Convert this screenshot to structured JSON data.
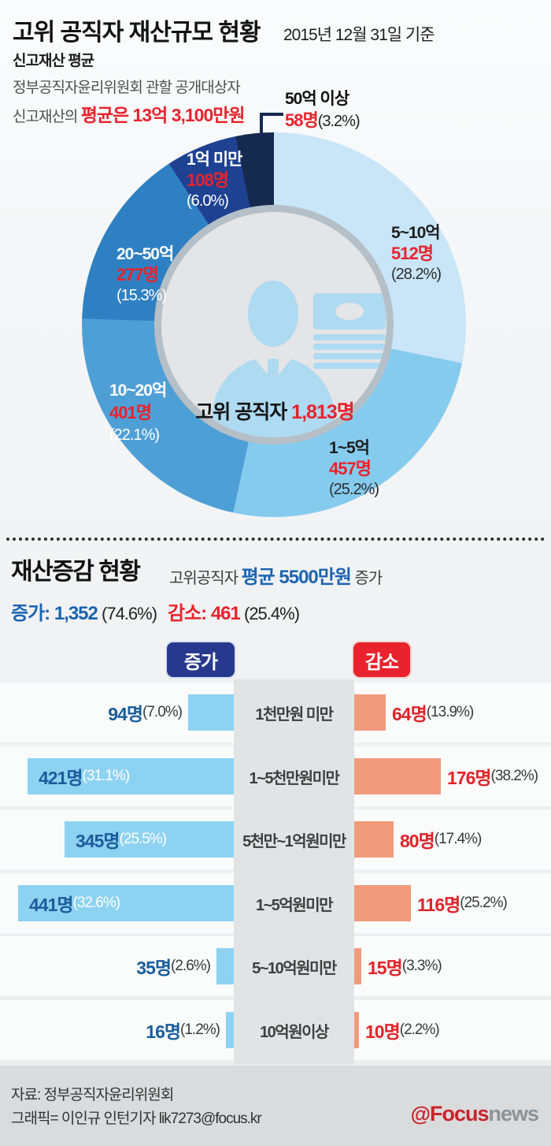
{
  "page": {
    "title": "고위 공직자 재산규모 현황",
    "date_note": "2015년 12월 31일 기준"
  },
  "section1": {
    "subtitle": "신고재산 평균",
    "desc_line1": "정부공직자윤리위원회 관할 공개대상자",
    "desc_line2_prefix": "신고재산의 ",
    "desc_line2_highlight": "평균은 13억 3,100만원",
    "donut": {
      "center_label": "고위 공직자 ",
      "center_value": "1,813명",
      "segments": [
        {
          "label": "5~10억",
          "count": "512명",
          "pct": "(28.2%)",
          "value": 28.2,
          "color": "#c9e5f8"
        },
        {
          "label": "1~5억",
          "count": "457명",
          "pct": "(25.2%)",
          "value": 25.2,
          "color": "#85cbee"
        },
        {
          "label": "10~20억",
          "count": "401명",
          "pct": "(22.1%)",
          "value": 22.1,
          "color": "#4f9fd7"
        },
        {
          "label": "20~50억",
          "count": "277명",
          "pct": "(15.3%)",
          "value": 15.3,
          "color": "#2f80c3"
        },
        {
          "label": "1억 미만",
          "count": "108명",
          "pct": "(6.0%)",
          "value": 6.0,
          "color": "#1f4191"
        },
        {
          "label": "50억 이상",
          "count": "58명",
          "pct": "(3.2%)",
          "value": 3.2,
          "color": "#16294e"
        }
      ]
    }
  },
  "section2": {
    "title": "재산증감 현황",
    "subtitle_prefix": "고위공직자 ",
    "subtitle_highlight": "평균 5500만원",
    "subtitle_suffix": " 증가",
    "increase_stat": "증가: 1,352",
    "increase_stat_pct": " (74.6%)",
    "decrease_stat": "감소: 461",
    "decrease_stat_pct": " (25.4%)",
    "increase_badge": "증가",
    "decrease_badge": "감소",
    "rows": [
      {
        "category": "1천만원 미만",
        "inc_count": "94명",
        "inc_pct": "(7.0%)",
        "inc_value": 94,
        "dec_count": "64명",
        "dec_pct": "(13.9%)",
        "dec_value": 64
      },
      {
        "category": "1~5천만원미만",
        "inc_count": "421명",
        "inc_pct": "(31.1%)",
        "inc_value": 421,
        "dec_count": "176명",
        "dec_pct": "(38.2%)",
        "dec_value": 176
      },
      {
        "category": "5천만~1억원미만",
        "inc_count": "345명",
        "inc_pct": "(25.5%)",
        "inc_value": 345,
        "dec_count": "80명",
        "dec_pct": "(17.4%)",
        "dec_value": 80
      },
      {
        "category": "1~5억원미만",
        "inc_count": "441명",
        "inc_pct": "(32.6%)",
        "inc_value": 441,
        "dec_count": "116명",
        "dec_pct": "(25.2%)",
        "dec_value": 116
      },
      {
        "category": "5~10억원미만",
        "inc_count": "35명",
        "inc_pct": "(2.6%)",
        "inc_value": 35,
        "dec_count": "15명",
        "dec_pct": "(3.3%)",
        "dec_value": 15
      },
      {
        "category": "10억원이상",
        "inc_count": "16명",
        "inc_pct": "(1.2%)",
        "inc_value": 16,
        "dec_count": "10명",
        "dec_pct": "(2.2%)",
        "dec_value": 10
      }
    ]
  },
  "footer": {
    "source": "자료: 정부공직자윤리위원회",
    "credit": "그래픽= 이인규 인턴기자 lik7273@focus.kr",
    "logo_mark": "@",
    "logo_text1": "Focus",
    "logo_text2": "news"
  },
  "colors": {
    "accent_red": "#e8232d",
    "accent_blue": "#1c64b0",
    "increase_bar": "#8ed2f2",
    "decrease_bar": "#f19a7c",
    "increase_badge_bg": "#27398e",
    "decrease_badge_bg": "#e8232d",
    "icon_blue": "#aedaf2"
  },
  "chart_data": [
    {
      "type": "pie",
      "donut": true,
      "title": "고위 공직자 재산규모 현황 — 신고재산 평균",
      "subtitle": "정부공직자윤리위원회 관할 공개대상자 신고재산의 평균은 13억 3,100만원 (2015년 12월 31일 기준)",
      "categories": [
        "5~10억",
        "1~5억",
        "10~20억",
        "20~50억",
        "1억 미만",
        "50억 이상"
      ],
      "values": [
        512,
        457,
        401,
        277,
        108,
        58
      ],
      "percents": [
        28.2,
        25.2,
        22.1,
        15.3,
        6.0,
        3.2
      ],
      "colors": [
        "#c9e5f8",
        "#85cbee",
        "#4f9fd7",
        "#2f80c3",
        "#1f4191",
        "#16294e"
      ],
      "center_label": "고위 공직자 1,813명",
      "total": 1813,
      "start_angle_deg": 0,
      "direction": "clockwise"
    },
    {
      "type": "bar",
      "orientation": "horizontal-paired",
      "title": "재산증감 현황",
      "subtitle": "고위공직자 평균 5500만원 증가",
      "categories": [
        "1천만원 미만",
        "1~5천만원미만",
        "5천만~1억원미만",
        "1~5억원미만",
        "5~10억원미만",
        "10억원이상"
      ],
      "series": [
        {
          "name": "증가",
          "values": [
            94,
            421,
            345,
            441,
            35,
            16
          ],
          "percents": [
            7.0,
            31.1,
            25.5,
            32.6,
            2.6,
            1.2
          ],
          "total": 1352,
          "total_pct": 74.6,
          "color": "#8ed2f2"
        },
        {
          "name": "감소",
          "values": [
            64,
            176,
            80,
            116,
            15,
            10
          ],
          "percents": [
            13.9,
            38.2,
            17.4,
            25.2,
            3.3,
            2.2
          ],
          "total": 461,
          "total_pct": 25.4,
          "color": "#f19a7c"
        }
      ]
    }
  ]
}
